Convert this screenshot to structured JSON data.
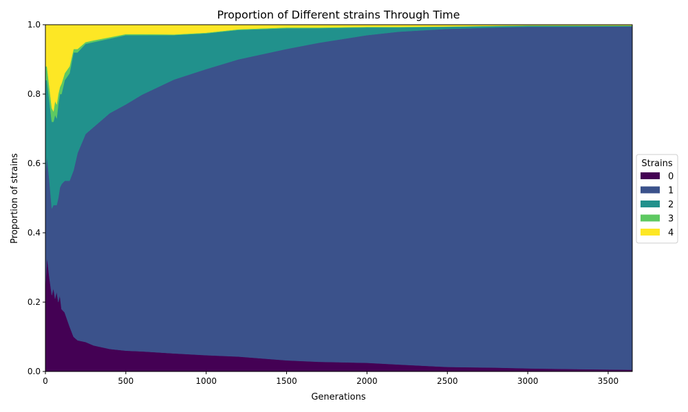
{
  "chart_data": {
    "type": "area",
    "stacked": true,
    "normalized": true,
    "title": "Proportion of Different strains Through Time",
    "xlabel": "Generations",
    "ylabel": "Proportion of strains",
    "xlim": [
      0,
      3650
    ],
    "ylim": [
      0,
      1.0
    ],
    "xticks": [
      "0",
      "500",
      "1000",
      "1500",
      "2000",
      "2500",
      "3000",
      "3500"
    ],
    "yticks": [
      "0.0",
      "0.2",
      "0.4",
      "0.6",
      "0.8",
      "1.0"
    ],
    "grid": false,
    "legend": {
      "title": "Strains",
      "placement": "right-center"
    },
    "x": [
      0,
      10,
      25,
      40,
      50,
      60,
      70,
      80,
      90,
      100,
      120,
      150,
      175,
      200,
      250,
      300,
      400,
      500,
      600,
      800,
      1000,
      1200,
      1500,
      1700,
      2000,
      2200,
      2500,
      2800,
      3000,
      3300,
      3650
    ],
    "series": [
      {
        "name": "0",
        "color": "#440154",
        "values": [
          0.24,
          0.33,
          0.27,
          0.22,
          0.24,
          0.21,
          0.23,
          0.2,
          0.22,
          0.18,
          0.17,
          0.13,
          0.1,
          0.09,
          0.085,
          0.075,
          0.065,
          0.06,
          0.058,
          0.052,
          0.047,
          0.043,
          0.032,
          0.028,
          0.025,
          0.02,
          0.013,
          0.011,
          0.009,
          0.007,
          0.005
        ]
      },
      {
        "name": "1",
        "color": "#3b528b",
        "values": [
          0.33,
          0.29,
          0.28,
          0.25,
          0.24,
          0.27,
          0.25,
          0.3,
          0.31,
          0.36,
          0.38,
          0.42,
          0.48,
          0.54,
          0.6,
          0.63,
          0.68,
          0.71,
          0.74,
          0.79,
          0.825,
          0.857,
          0.898,
          0.92,
          0.945,
          0.96,
          0.975,
          0.981,
          0.985,
          0.987,
          0.99
        ]
      },
      {
        "name": "2",
        "color": "#21918c",
        "values": [
          0.27,
          0.22,
          0.23,
          0.25,
          0.24,
          0.26,
          0.25,
          0.27,
          0.27,
          0.26,
          0.29,
          0.31,
          0.34,
          0.29,
          0.26,
          0.245,
          0.215,
          0.2,
          0.172,
          0.128,
          0.103,
          0.085,
          0.06,
          0.042,
          0.022,
          0.012,
          0.006,
          0.004,
          0.003,
          0.003,
          0.002
        ]
      },
      {
        "name": "3",
        "color": "#5ec962",
        "values": [
          0.04,
          0.04,
          0.04,
          0.04,
          0.03,
          0.04,
          0.04,
          0.03,
          0.02,
          0.03,
          0.02,
          0.02,
          0.01,
          0.01,
          0.005,
          0.005,
          0.004,
          0.003,
          0.003,
          0.002,
          0.002,
          0.002,
          0.002,
          0.002,
          0.002,
          0.002,
          0.001,
          0.001,
          0.001,
          0.001,
          0.001
        ]
      },
      {
        "name": "4",
        "color": "#fde725",
        "values": [
          0.12,
          0.12,
          0.18,
          0.24,
          0.25,
          0.22,
          0.23,
          0.2,
          0.18,
          0.17,
          0.14,
          0.12,
          0.07,
          0.07,
          0.05,
          0.045,
          0.036,
          0.027,
          0.027,
          0.028,
          0.023,
          0.013,
          0.008,
          0.008,
          0.006,
          0.006,
          0.005,
          0.003,
          0.002,
          0.002,
          0.002
        ]
      }
    ]
  }
}
